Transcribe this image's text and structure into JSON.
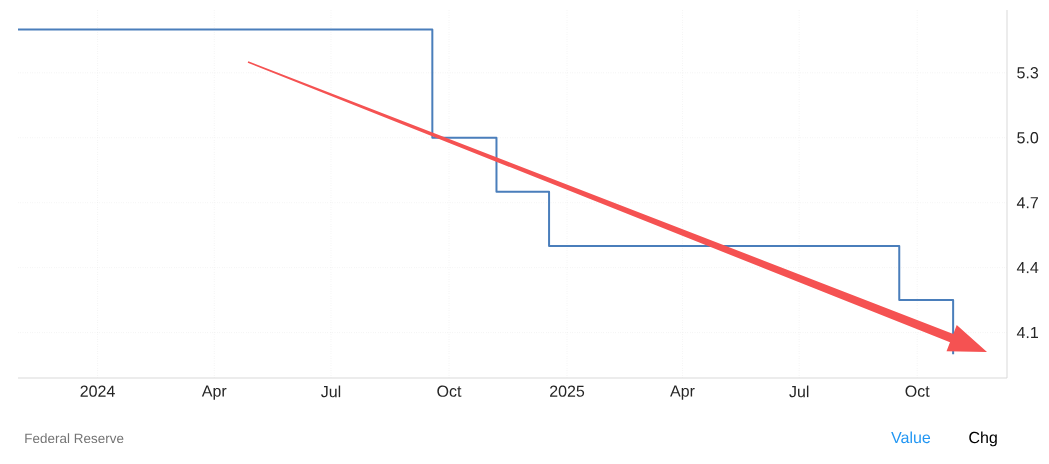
{
  "chart_data": {
    "type": "step",
    "x": [
      "2023-10-31",
      "2024-09-18",
      "2024-11-07",
      "2024-12-18",
      "2025-09-17",
      "2025-10-29"
    ],
    "values": [
      5.5,
      5.0,
      4.75,
      4.5,
      4.25,
      4.0
    ],
    "color": "#4a7ebb",
    "line_style": "solid",
    "marker": "none",
    "xlim": [
      "2023-10-31",
      "2025-12-10"
    ],
    "ylim": [
      3.89,
      5.59
    ],
    "xticks": [
      {
        "value": "2024-01-01",
        "label": "2024"
      },
      {
        "value": "2024-04-01",
        "label": "Apr"
      },
      {
        "value": "2024-07-01",
        "label": "Jul"
      },
      {
        "value": "2024-10-01",
        "label": "Oct"
      },
      {
        "value": "2025-01-01",
        "label": "2025"
      },
      {
        "value": "2025-04-01",
        "label": "Apr"
      },
      {
        "value": "2025-07-01",
        "label": "Jul"
      },
      {
        "value": "2025-10-01",
        "label": "Oct"
      }
    ],
    "yticks": [
      4.1,
      4.4,
      4.7,
      {
        "value": 5.0,
        "label": "5.0"
      },
      5.3
    ],
    "grid": true,
    "annotations": [
      "Federal Reserve",
      "Value",
      "Chg"
    ]
  }
}
